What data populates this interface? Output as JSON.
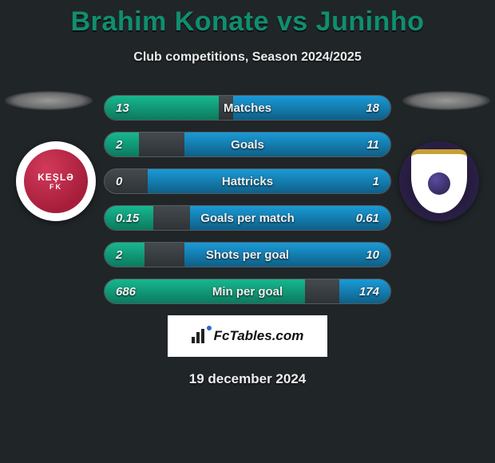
{
  "title": "Brahim Konate vs Juninho",
  "subtitle": "Club competitions, Season 2024/2025",
  "date": "19 december 2024",
  "brand": "FcTables.com",
  "colors": {
    "title_color": "#0f8f6f",
    "left_fill": "#14a37d",
    "right_fill": "#1888bd",
    "bar_bg": "#3a4043",
    "page_bg": "#202528"
  },
  "crests": {
    "left_label": "KEŞLƏ",
    "left_sub": "FK",
    "left_main_color": "#b4264a",
    "right_bg": "#1e1533",
    "right_shield": "#ffffff",
    "right_accent": "#c7a035"
  },
  "rows": [
    {
      "label": "Matches",
      "left": "13",
      "right": "18",
      "left_pct": 40,
      "right_pct": 55
    },
    {
      "label": "Goals",
      "left": "2",
      "right": "11",
      "left_pct": 12,
      "right_pct": 72
    },
    {
      "label": "Hattricks",
      "left": "0",
      "right": "1",
      "left_pct": 0,
      "right_pct": 85
    },
    {
      "label": "Goals per match",
      "left": "0.15",
      "right": "0.61",
      "left_pct": 17,
      "right_pct": 70
    },
    {
      "label": "Shots per goal",
      "left": "2",
      "right": "10",
      "left_pct": 14,
      "right_pct": 72
    },
    {
      "label": "Min per goal",
      "left": "686",
      "right": "174",
      "left_pct": 70,
      "right_pct": 18
    }
  ]
}
